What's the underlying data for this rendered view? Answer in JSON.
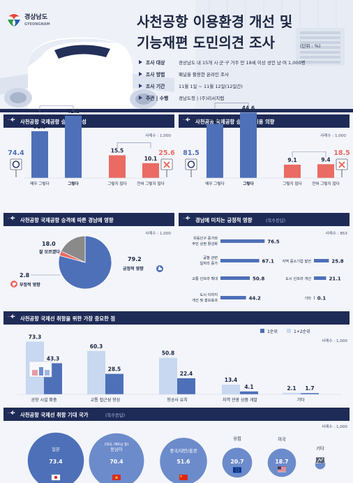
{
  "header": {
    "logo_ko": "경상남도",
    "logo_en": "GYEONGNAM",
    "title_line1": "사천공항 이용환경 개선 및",
    "title_line2": "기능재편 도민의견 조사",
    "unit": "(단위 : %)",
    "info": [
      {
        "label": "조사 대상",
        "value": "경상남도 내 15개 시·군·구 거주 만 18세 이상 성인 남·여 1,000명"
      },
      {
        "label": "조사 방법",
        "value": "패널을 활용한 온라인 조사"
      },
      {
        "label": "조사 기간",
        "value": "11월 1일 ~ 11월 12일(12일간)"
      },
      {
        "label": "주관 | 수행",
        "value": "경남도청 | (주)리서치랩"
      }
    ]
  },
  "colors": {
    "navy": "#1f2b57",
    "blue": "#4e70b8",
    "red": "#ea6b63",
    "light_blue": "#c7d8f0",
    "gray": "#8a8a8a"
  },
  "sections": {
    "s1": {
      "title": "사천공항 국제공항 승격 필요성",
      "sample": "사례수 : 1,000"
    },
    "s2": {
      "title": "사천공항 국제공항 승격 시 이용 의향",
      "sample": "사례수 : 1,000"
    },
    "s3": {
      "title": "사천공항 국제공항 승격에 따른 경남에 영향",
      "sample": "사례수 : 1,000"
    },
    "s4": {
      "title": "경남에 미치는 긍정적 영향",
      "title_sub": "(복수응답)",
      "sample": "사례수 : 853"
    },
    "s5": {
      "title": "사천공항 국제선 취항을 위한 가장 중요한 점",
      "sample": "사례수 : 1,000"
    },
    "s6": {
      "title": "사천공항 국제선 취항 기대 국가",
      "title_sub": "(복수응답)",
      "sample": "사례수 : 1,000"
    }
  },
  "chart_data": [
    {
      "type": "bar",
      "title": "사천공항 국제공항 승격 필요성",
      "categories": [
        "매우 그렇다",
        "그렇다",
        "그렇지 않다",
        "전혀 그렇지 않다"
      ],
      "values": [
        31.9,
        42.5,
        15.5,
        10.1
      ],
      "totals": {
        "positive": 74.4,
        "negative": 25.6
      },
      "ylim": [
        0,
        50
      ]
    },
    {
      "type": "bar",
      "title": "사천공항 국제공항 승격 시 이용 의향",
      "categories": [
        "매우 그렇다",
        "그렇다",
        "그렇지 않다",
        "전혀 그렇지 않다"
      ],
      "values": [
        36.9,
        44.6,
        9.1,
        9.4
      ],
      "totals": {
        "positive": 81.5,
        "negative": 18.5
      },
      "ylim": [
        0,
        50
      ]
    },
    {
      "type": "pie",
      "title": "사천공항 국제공항 승격에 따른 경남에 영향",
      "labels": [
        "긍정적 영향",
        "부정적 영향",
        "잘 모르겠다"
      ],
      "values": [
        79.2,
        2.8,
        18.0
      ]
    },
    {
      "type": "bar",
      "title": "경남에 미치는 긍정적 영향",
      "categories": [
        {
          "l1": "유동인구 증가와",
          "l2": "주민 상권 활성화"
        },
        {
          "l1": "공항 관련",
          "l2": "일자리 증가"
        },
        {
          "l1": "교통 인프라 확대",
          "l2": ""
        },
        {
          "l1": "도시 이미지",
          "l2": "개선 및 홍보효과"
        },
        {
          "l1": "지역 중소기업 발전",
          "l2": ""
        },
        {
          "l1": "도시 인프라 개선",
          "l2": ""
        },
        {
          "l1": "기타",
          "l2": ""
        }
      ],
      "values": [
        76.5,
        67.1,
        50.8,
        44.2,
        25.8,
        21.1,
        0.1
      ],
      "xlim": [
        0,
        80
      ]
    },
    {
      "type": "bar",
      "title": "사천공항 국제선 취항을 위한 가장 중요한 점",
      "categories": [
        "공항 시설 확충",
        "교통 접근성 향상",
        "항공사 유치",
        "지역 관광 상품 개발",
        "기타"
      ],
      "series": [
        {
          "name": "1순위",
          "values": [
            43.3,
            28.5,
            22.4,
            4.1,
            1.7
          ]
        },
        {
          "name": "1+2순위",
          "values": [
            73.3,
            60.3,
            50.8,
            13.4,
            2.1
          ]
        }
      ],
      "ylim": [
        0,
        80
      ]
    },
    {
      "type": "bar",
      "title": "사천공항 국제선 취항 기대 국가",
      "categories": [
        {
          "name": "일본",
          "note": ""
        },
        {
          "name": "동남아",
          "note": "(태국, 베트남 등)"
        },
        {
          "name": "중국/대만/홍콩",
          "note": ""
        },
        {
          "name": "유럽",
          "note": ""
        },
        {
          "name": "미국",
          "note": ""
        },
        {
          "name": "기타",
          "note": ""
        }
      ],
      "values": [
        73.4,
        70.4,
        51.6,
        20.7,
        18.7,
        2.4
      ]
    }
  ]
}
